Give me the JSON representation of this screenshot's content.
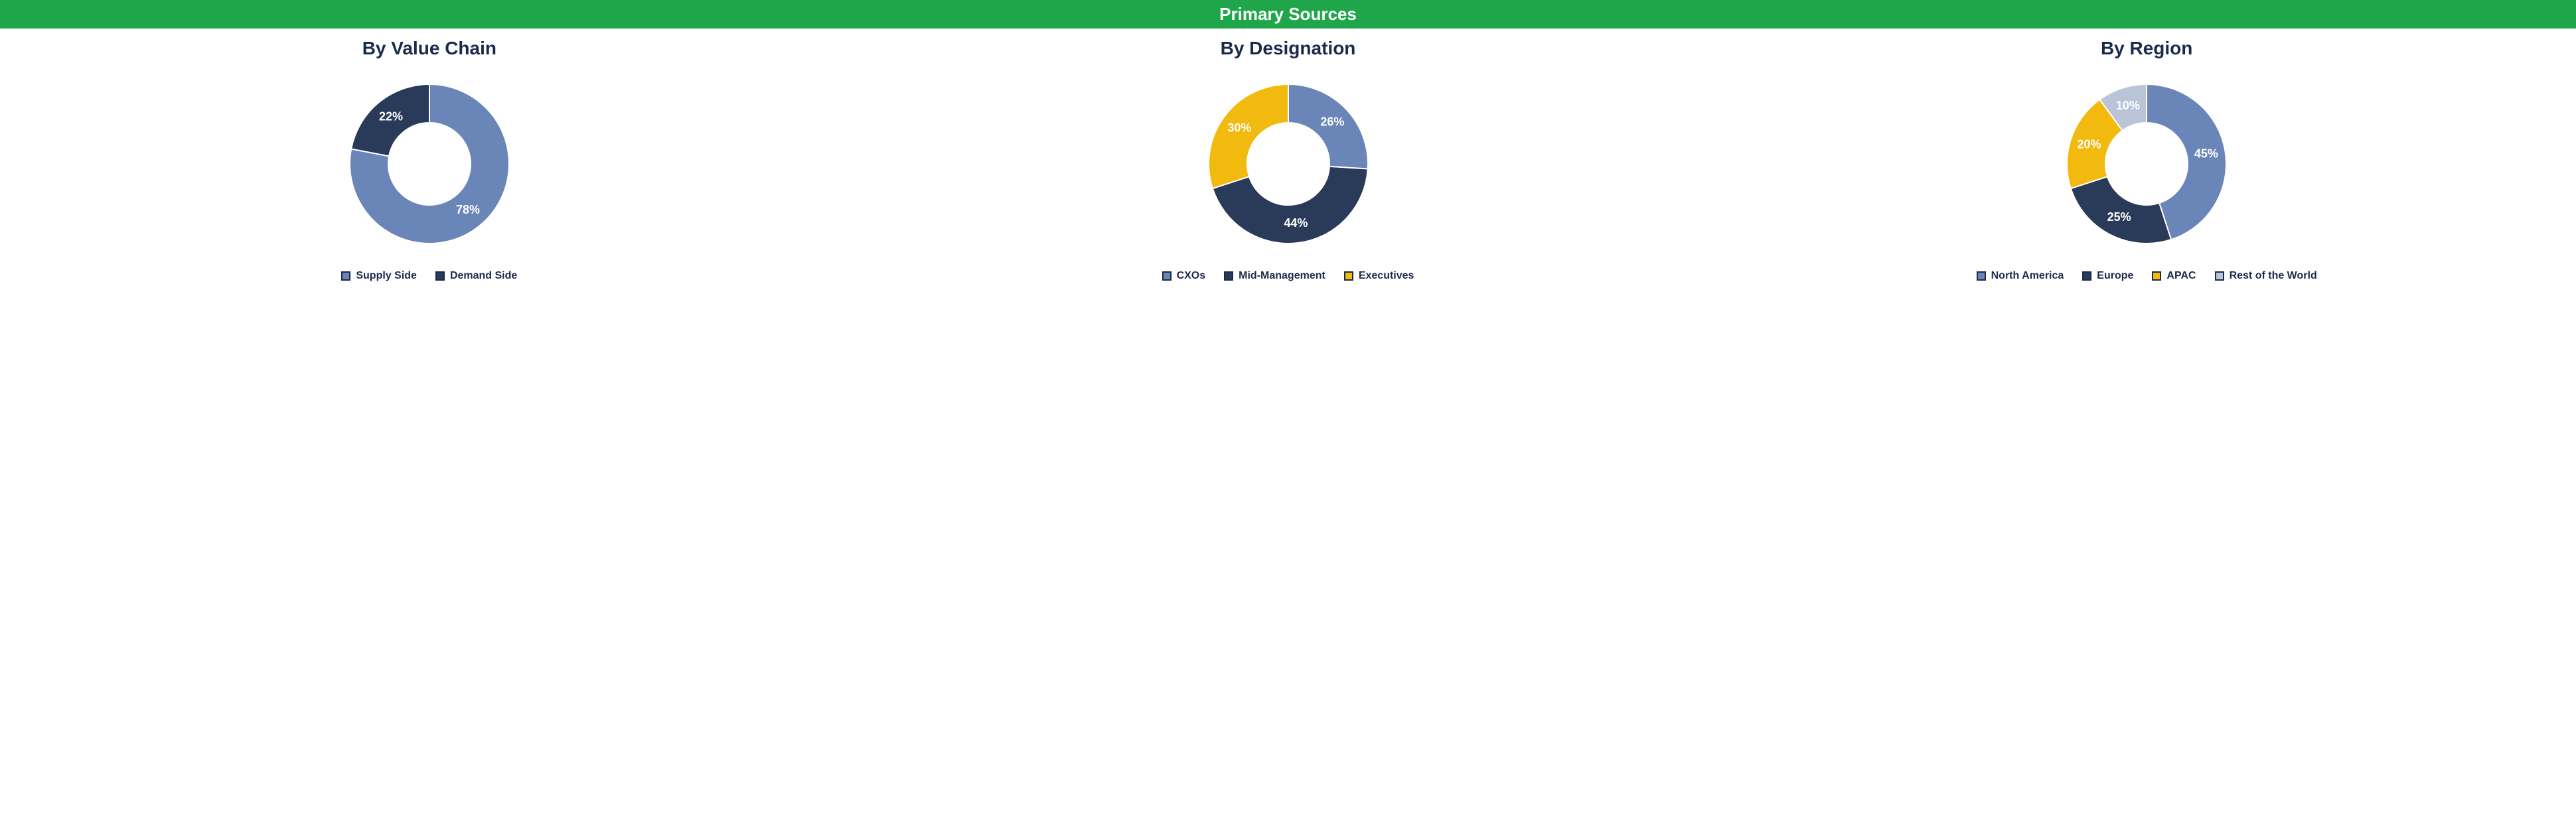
{
  "banner": {
    "text": "Primary Sources",
    "bg_color": "#1fa64a",
    "text_color": "#ffffff",
    "fontsize": 26
  },
  "title_style": {
    "color": "#1b2a4a",
    "fontsize": 28
  },
  "donut": {
    "outer_r": 120,
    "inner_r": 62,
    "svg_size": 300,
    "start_angle_deg": 0,
    "separator_color": "#ffffff",
    "separator_width": 2,
    "label_color": "#ffffff",
    "label_fontsize": 18,
    "offset_inward": 0
  },
  "legend_style": {
    "text_color": "#1b2a4a",
    "fontsize": 16,
    "swatch_border": "#1b2a4a",
    "swatch_border_width": 2
  },
  "panels": [
    {
      "title": "By Value Chain",
      "slices": [
        {
          "label": "Supply Side",
          "value": 78,
          "color": "#6a86b8",
          "percent_text": "78%"
        },
        {
          "label": "Demand Side",
          "value": 22,
          "color": "#2a3a59",
          "percent_text": "22%"
        }
      ]
    },
    {
      "title": "By Designation",
      "slices": [
        {
          "label": "CXOs",
          "value": 26,
          "color": "#6a86b8",
          "percent_text": "26%"
        },
        {
          "label": "Mid-Management",
          "value": 44,
          "color": "#2a3a59",
          "percent_text": "44%"
        },
        {
          "label": "Executives",
          "value": 30,
          "color": "#f2b90f",
          "percent_text": "30%"
        }
      ]
    },
    {
      "title": "By Region",
      "slices": [
        {
          "label": "North America",
          "value": 45,
          "color": "#6a86b8",
          "percent_text": "45%"
        },
        {
          "label": "Europe",
          "value": 25,
          "color": "#2a3a59",
          "percent_text": "25%"
        },
        {
          "label": "APAC",
          "value": 20,
          "color": "#f2b90f",
          "percent_text": "20%"
        },
        {
          "label": "Rest of the World",
          "value": 10,
          "color": "#b9c4d6",
          "percent_text": "10%"
        }
      ]
    }
  ]
}
